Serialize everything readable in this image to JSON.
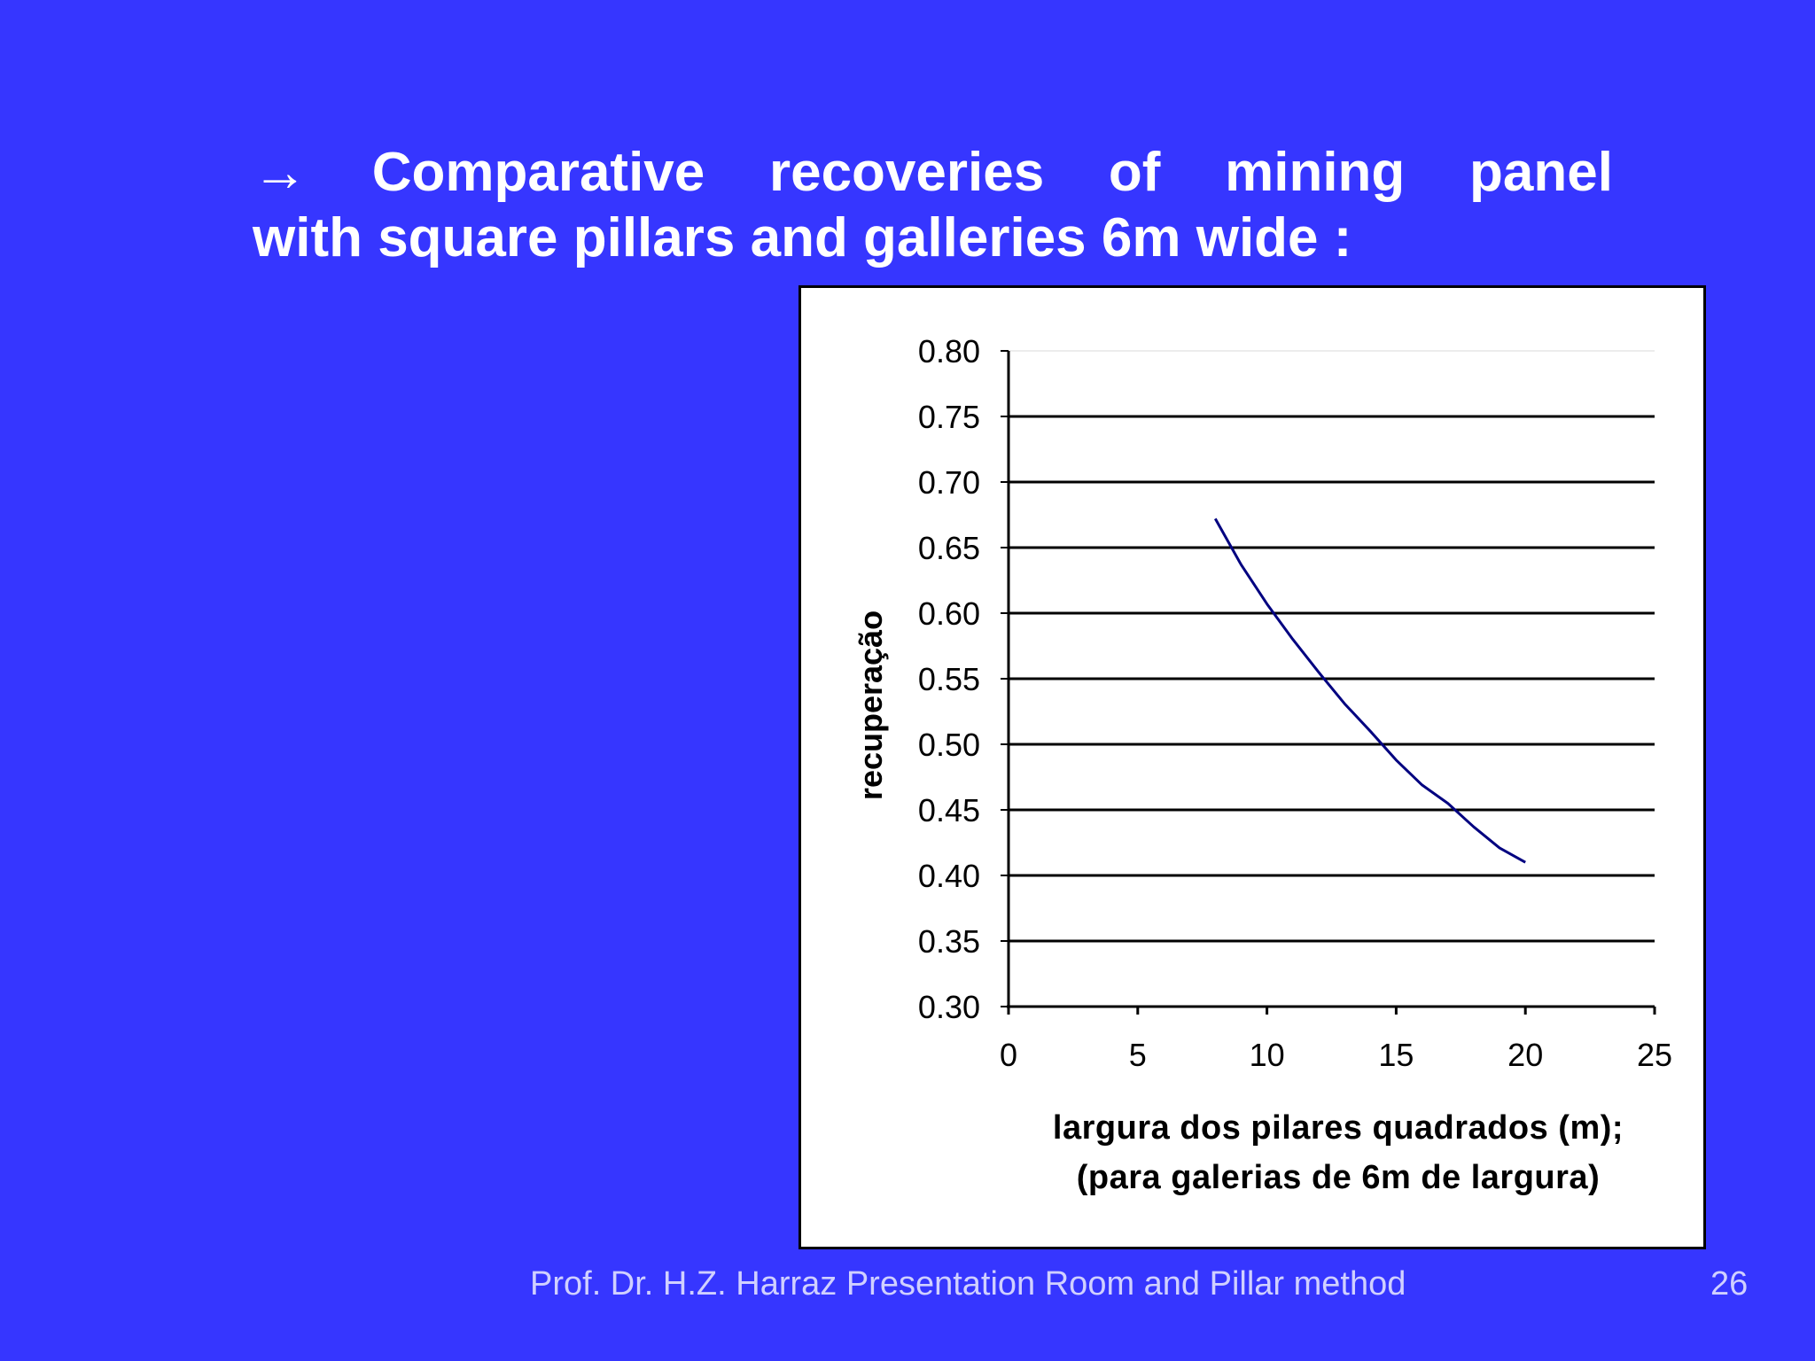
{
  "slide": {
    "title_line1": [
      "→",
      "Comparative",
      "recoveries",
      "of",
      "mining",
      "panel"
    ],
    "title_line2": "with square pillars and galleries 6m wide :",
    "footer_text": "Prof. Dr. H.Z. Harraz Presentation   Room and Pillar method",
    "page_number": "26",
    "background_color": "#3636FF"
  },
  "chart_data": {
    "type": "line",
    "title": "",
    "xlabel_line1": "largura dos pilares quadrados (m);",
    "xlabel_line2": "(para galerias de 6m de largura)",
    "ylabel": "recuperação",
    "xlim": [
      0,
      25
    ],
    "ylim": [
      0.3,
      0.8
    ],
    "x_ticks": [
      "0",
      "5",
      "10",
      "15",
      "20",
      "25"
    ],
    "y_ticks": [
      "0.30",
      "0.35",
      "0.40",
      "0.45",
      "0.50",
      "0.55",
      "0.60",
      "0.65",
      "0.70",
      "0.75",
      "0.80"
    ],
    "grid": true,
    "line_color": "#000080",
    "series": [
      {
        "x": [
          8,
          9,
          10,
          11,
          12,
          13,
          14,
          15,
          16,
          17,
          18,
          19,
          20
        ],
        "y": [
          0.672,
          0.637,
          0.607,
          0.58,
          0.555,
          0.531,
          0.51,
          0.488,
          0.469,
          0.455,
          0.437,
          0.421,
          0.41
        ]
      }
    ]
  }
}
